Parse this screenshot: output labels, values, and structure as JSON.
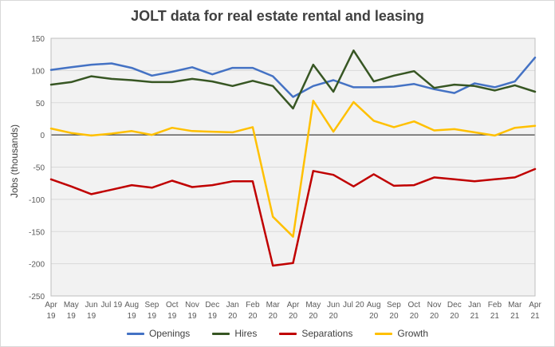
{
  "chart_data": {
    "type": "line",
    "title": "JOLT data for real estate rental and leasing",
    "xlabel": "",
    "ylabel": "Jobs (thousands)",
    "ylim": [
      -250,
      150
    ],
    "yticks": [
      150,
      100,
      50,
      0,
      -50,
      -100,
      -150,
      -200,
      -250
    ],
    "grid": true,
    "legend_position": "bottom",
    "categories": [
      [
        "Apr",
        "19"
      ],
      [
        "May",
        "19"
      ],
      [
        "Jun",
        "19"
      ],
      [
        "Jul 19",
        ""
      ],
      [
        "Aug",
        "19"
      ],
      [
        "Sep",
        "19"
      ],
      [
        "Oct",
        "19"
      ],
      [
        "Nov",
        "19"
      ],
      [
        "Dec",
        "19"
      ],
      [
        "Jan",
        "20"
      ],
      [
        "Feb",
        "20"
      ],
      [
        "Mar",
        "20"
      ],
      [
        "Apr",
        "20"
      ],
      [
        "May",
        "20"
      ],
      [
        "Jun",
        "20"
      ],
      [
        "Jul 20",
        ""
      ],
      [
        "Aug",
        "20"
      ],
      [
        "Sep",
        "20"
      ],
      [
        "Oct",
        "20"
      ],
      [
        "Nov",
        "20"
      ],
      [
        "Dec",
        "20"
      ],
      [
        "Jan",
        "21"
      ],
      [
        "Feb",
        "21"
      ],
      [
        "Mar",
        "21"
      ],
      [
        "Apr",
        "21"
      ]
    ],
    "series": [
      {
        "name": "Openings",
        "color": "#4472c4",
        "values": [
          101,
          105,
          109,
          111,
          104,
          92,
          98,
          105,
          94,
          104,
          104,
          91,
          59,
          76,
          85,
          74,
          74,
          75,
          79,
          71,
          65,
          80,
          74,
          83,
          120
        ]
      },
      {
        "name": "Hires",
        "color": "#375623",
        "values": [
          78,
          82,
          91,
          87,
          85,
          82,
          82,
          87,
          83,
          76,
          84,
          76,
          41,
          109,
          67,
          131,
          83,
          92,
          99,
          73,
          78,
          76,
          69,
          77,
          67
        ]
      },
      {
        "name": "Separations",
        "color": "#c00000",
        "values": [
          -69,
          -80,
          -92,
          -85,
          -78,
          -82,
          -71,
          -81,
          -78,
          -72,
          -72,
          -203,
          -199,
          -56,
          -62,
          -80,
          -61,
          -79,
          -78,
          -66,
          -69,
          -72,
          -69,
          -66,
          -53
        ]
      },
      {
        "name": "Growth",
        "color": "#ffc000",
        "values": [
          10,
          3,
          -1,
          2,
          6,
          0,
          11,
          6,
          5,
          4,
          12,
          -127,
          -158,
          53,
          5,
          51,
          22,
          12,
          21,
          7,
          9,
          4,
          -1,
          11,
          14
        ]
      }
    ]
  }
}
